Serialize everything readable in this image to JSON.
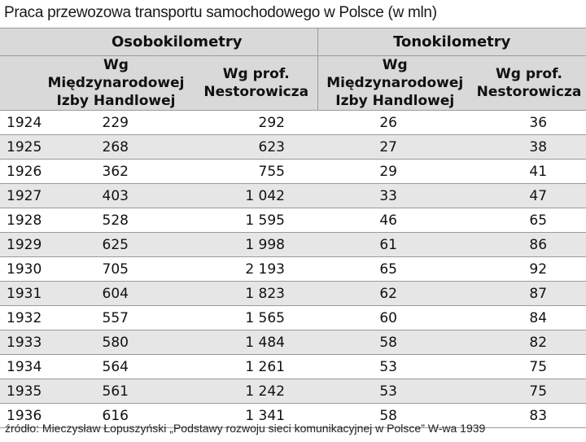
{
  "title": "Praca przewozowa transportu samochodowego w Polsce (w mln)",
  "header": {
    "group_1": "Osobokilometry",
    "group_2": "Tonokilometry",
    "col_1": "Wg Międzynarodowej Izby Handlowej",
    "col_2": "Wg prof. Nestorowicza",
    "col_3": "Wg Międzynarodowej Izby Handlowej",
    "col_4": "Wg prof. Nestorowicza"
  },
  "rows": [
    [
      "1924",
      "229",
      "292",
      "26",
      "36"
    ],
    [
      "1925",
      "268",
      "623",
      "27",
      "38"
    ],
    [
      "1926",
      "362",
      "755",
      "29",
      "41"
    ],
    [
      "1927",
      "403",
      "1 042",
      "33",
      "47"
    ],
    [
      "1928",
      "528",
      "1 595",
      "46",
      "65"
    ],
    [
      "1929",
      "625",
      "1 998",
      "61",
      "86"
    ],
    [
      "1930",
      "705",
      "2 193",
      "65",
      "92"
    ],
    [
      "1931",
      "604",
      "1 823",
      "62",
      "87"
    ],
    [
      "1932",
      "557",
      "1 565",
      "60",
      "84"
    ],
    [
      "1933",
      "580",
      "1 484",
      "58",
      "82"
    ],
    [
      "1934",
      "564",
      "1 261",
      "53",
      "75"
    ],
    [
      "1935",
      "561",
      "1 242",
      "53",
      "75"
    ],
    [
      "1936",
      "616",
      "1 341",
      "58",
      "83"
    ]
  ],
  "source": "źródło: Mieczysław Łopuszyński „Podstawy rozwoju sieci komunikacyjnej w Polsce” W-wa 1939"
}
